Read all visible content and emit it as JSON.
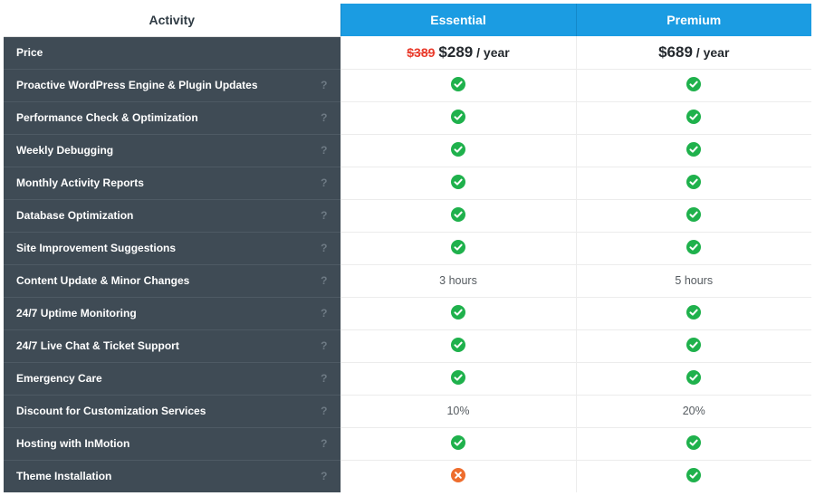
{
  "colors": {
    "plan_header_bg": "#1b9ce2",
    "plan_header_border": "#1488c9",
    "activity_bg": "#3f4b55",
    "activity_row_border": "#4e5a64",
    "activity_text": "#ffffff",
    "help_text": "#6e7a84",
    "value_bg": "#ffffff",
    "value_border": "#ececec",
    "value_text": "#555b60",
    "check_green": "#1fb14c",
    "cross_orange": "#ee6d2d",
    "strike_red": "#e93b2c",
    "price_dark": "#24292e",
    "page_bg": "#ffffff"
  },
  "header": {
    "activity": "Activity",
    "plans": [
      "Essential",
      "Premium"
    ]
  },
  "rows": [
    {
      "label": "Price",
      "help": false,
      "values": [
        {
          "type": "price",
          "strike": "$389",
          "main": "$289",
          "suffix": " / year"
        },
        {
          "type": "price",
          "strike": "",
          "main": "$689",
          "suffix": " / year"
        }
      ]
    },
    {
      "label": "Proactive WordPress Engine & Plugin Updates",
      "help": true,
      "values": [
        {
          "type": "check"
        },
        {
          "type": "check"
        }
      ]
    },
    {
      "label": "Performance Check & Optimization",
      "help": true,
      "values": [
        {
          "type": "check"
        },
        {
          "type": "check"
        }
      ]
    },
    {
      "label": "Weekly Debugging",
      "help": true,
      "values": [
        {
          "type": "check"
        },
        {
          "type": "check"
        }
      ]
    },
    {
      "label": "Monthly Activity Reports",
      "help": true,
      "values": [
        {
          "type": "check"
        },
        {
          "type": "check"
        }
      ]
    },
    {
      "label": "Database Optimization",
      "help": true,
      "values": [
        {
          "type": "check"
        },
        {
          "type": "check"
        }
      ]
    },
    {
      "label": "Site Improvement Suggestions",
      "help": true,
      "values": [
        {
          "type": "check"
        },
        {
          "type": "check"
        }
      ]
    },
    {
      "label": "Content Update & Minor Changes",
      "help": true,
      "values": [
        {
          "type": "text",
          "text": "3 hours"
        },
        {
          "type": "text",
          "text": "5 hours"
        }
      ]
    },
    {
      "label": "24/7 Uptime Monitoring",
      "help": true,
      "values": [
        {
          "type": "check"
        },
        {
          "type": "check"
        }
      ]
    },
    {
      "label": "24/7 Live Chat & Ticket Support",
      "help": true,
      "values": [
        {
          "type": "check"
        },
        {
          "type": "check"
        }
      ]
    },
    {
      "label": "Emergency Care",
      "help": true,
      "values": [
        {
          "type": "check"
        },
        {
          "type": "check"
        }
      ]
    },
    {
      "label": "Discount for Customization Services",
      "help": true,
      "values": [
        {
          "type": "text",
          "text": "10%"
        },
        {
          "type": "text",
          "text": "20%"
        }
      ]
    },
    {
      "label": "Hosting with InMotion",
      "help": true,
      "values": [
        {
          "type": "check"
        },
        {
          "type": "check"
        }
      ]
    },
    {
      "label": "Theme Installation",
      "help": true,
      "values": [
        {
          "type": "cross"
        },
        {
          "type": "check"
        }
      ]
    }
  ],
  "glyphs": {
    "help": "?"
  }
}
